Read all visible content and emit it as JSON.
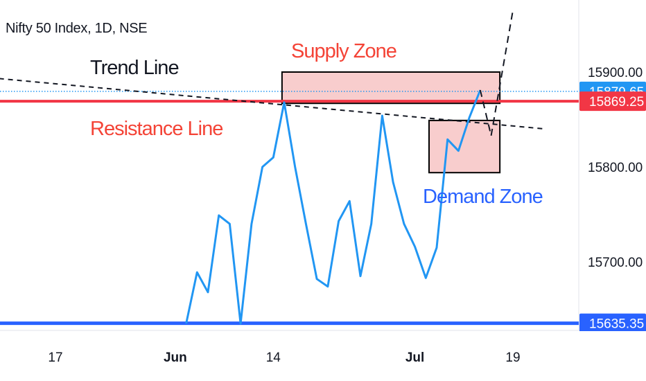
{
  "header": {
    "title": "Nifty 50 Index, 1D, NSE"
  },
  "annotations": {
    "supply_zone": "Supply Zone",
    "demand_zone": "Demand Zone",
    "trend_line": "Trend Line",
    "resistance_line": "Resistance Line"
  },
  "colors": {
    "price_line": "#2196f3",
    "resistance": "#f23645",
    "support": "#2962ff",
    "zone_fill": "#f8cdcd",
    "supply_text": "#f44336",
    "demand_text": "#2962ff",
    "current_price_tag": "#2196f3",
    "resistance_tag": "#f23645",
    "support_tag": "#2962ff"
  },
  "chart_data": {
    "type": "line",
    "ylim": [
      15620,
      15965
    ],
    "y_ticks": [
      {
        "value": 15900,
        "label": "15900.00"
      },
      {
        "value": 15800,
        "label": "15800.00"
      },
      {
        "value": 15700,
        "label": "15700.00"
      }
    ],
    "x_ticks": [
      {
        "index": 0,
        "label": "17",
        "bold": false
      },
      {
        "index": 11,
        "label": "Jun",
        "bold": true
      },
      {
        "index": 20,
        "label": "14",
        "bold": false
      },
      {
        "index": 33,
        "label": "Jul",
        "bold": true
      },
      {
        "index": 42,
        "label": "19",
        "bold": false
      }
    ],
    "price_tags": [
      {
        "label": "15879.65",
        "value": 15879.65,
        "color_key": "current_price_tag"
      },
      {
        "label": "15869.25",
        "value": 15869.25,
        "color_key": "resistance_tag"
      },
      {
        "label": "15635.35",
        "value": 15635.35,
        "color_key": "support_tag"
      }
    ],
    "series": [
      {
        "index_start": 12,
        "values": [
          15635,
          15689,
          15668,
          15749,
          15740,
          15635,
          15740,
          15800,
          15810,
          15868,
          15800,
          15740,
          15682,
          15674,
          15743,
          15764,
          15685,
          15740,
          15854,
          15784,
          15740,
          15716,
          15683,
          15715,
          15829,
          15817,
          15852,
          15881
        ]
      }
    ],
    "resistance_level": 15869.25,
    "support_level": 15635.35,
    "current_price": 15879.65,
    "trend_line": {
      "from": {
        "index": -6,
        "value": 15894
      },
      "to": {
        "index": 45,
        "value": 15840
      }
    },
    "projection": [
      {
        "from": {
          "index": 39,
          "value": 15881
        },
        "to": {
          "index": 40,
          "value": 15833
        }
      },
      {
        "from": {
          "index": 40,
          "value": 15833
        },
        "to": {
          "index": 42,
          "value": 15965
        }
      }
    ],
    "zones": [
      {
        "name": "Supply Zone",
        "index_from": 20.8,
        "index_to": 40.8,
        "value_from": 15867,
        "value_to": 15900
      },
      {
        "name": "Demand Zone",
        "index_from": 34.3,
        "index_to": 40.8,
        "value_from": 15794,
        "value_to": 15849
      }
    ]
  }
}
